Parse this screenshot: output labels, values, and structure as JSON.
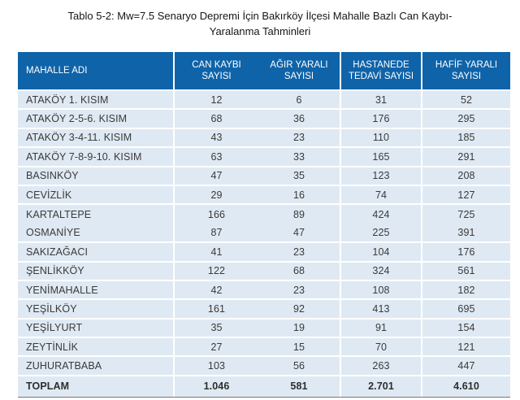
{
  "document": {
    "title_line1": "Tablo 5-2: Mw=7.5 Senaryo Depremi İçin Bakırköy İlçesi Mahalle Bazlı Can Kaybı-",
    "title_line2": "Yaralanma Tahminleri"
  },
  "table": {
    "header": {
      "cells": [
        "MAHALLE ADI",
        "CAN KAYBI\nSAYISI",
        "AĞIR YARALI\nSAYISI",
        "HASTANEDE\nTEDAVİ SAYISI",
        "HAFİF YARALI\nSAYISI"
      ]
    },
    "rows": [
      {
        "cells": [
          "ATAKÖY 1. KISIM",
          "12",
          "6",
          "31",
          "52"
        ]
      },
      {
        "cells": [
          "ATAKÖY 2-5-6. KISIM",
          "68",
          "36",
          "176",
          "295"
        ]
      },
      {
        "cells": [
          "ATAKÖY 3-4-11. KISIM",
          "43",
          "23",
          "110",
          "185"
        ]
      },
      {
        "cells": [
          "ATAKÖY 7-8-9-10. KISIM",
          "63",
          "33",
          "165",
          "291"
        ]
      },
      {
        "cells": [
          "BASINKÖY",
          "47",
          "35",
          "123",
          "208"
        ]
      },
      {
        "cells": [
          "CEVİZLİK",
          "29",
          "16",
          "74",
          "127"
        ]
      },
      {
        "cells": [
          "KARTALTEPE",
          "166",
          "89",
          "424",
          "725"
        ],
        "separator_after": false
      },
      {
        "cells": [
          "OSMANİYE",
          "87",
          "47",
          "225",
          "391"
        ]
      },
      {
        "cells": [
          "SAKIZAĞACI",
          "41",
          "23",
          "104",
          "176"
        ]
      },
      {
        "cells": [
          "ŞENLİKKÖY",
          "122",
          "68",
          "324",
          "561"
        ]
      },
      {
        "cells": [
          "YENİMAHALLE",
          "42",
          "23",
          "108",
          "182"
        ]
      },
      {
        "cells": [
          "YEŞİLKÖY",
          "161",
          "92",
          "413",
          "695"
        ]
      },
      {
        "cells": [
          "YEŞİLYURT",
          "35",
          "19",
          "91",
          "154"
        ]
      },
      {
        "cells": [
          "ZEYTİNLİK",
          "27",
          "15",
          "70",
          "121"
        ]
      },
      {
        "cells": [
          "ZUHURATBABA",
          "103",
          "56",
          "263",
          "447"
        ]
      }
    ],
    "total_row": {
      "cells": [
        "TOPLAM",
        "1.046",
        "581",
        "2.701",
        "4.610"
      ]
    }
  },
  "colors": {
    "header_bg": "#0f63a8",
    "header_text": "#ffffff",
    "row_bg": "#dfe9f3",
    "body_text": "#3a3a3a",
    "separator": "#ffffff",
    "total_bottom_border": "#77787b"
  }
}
